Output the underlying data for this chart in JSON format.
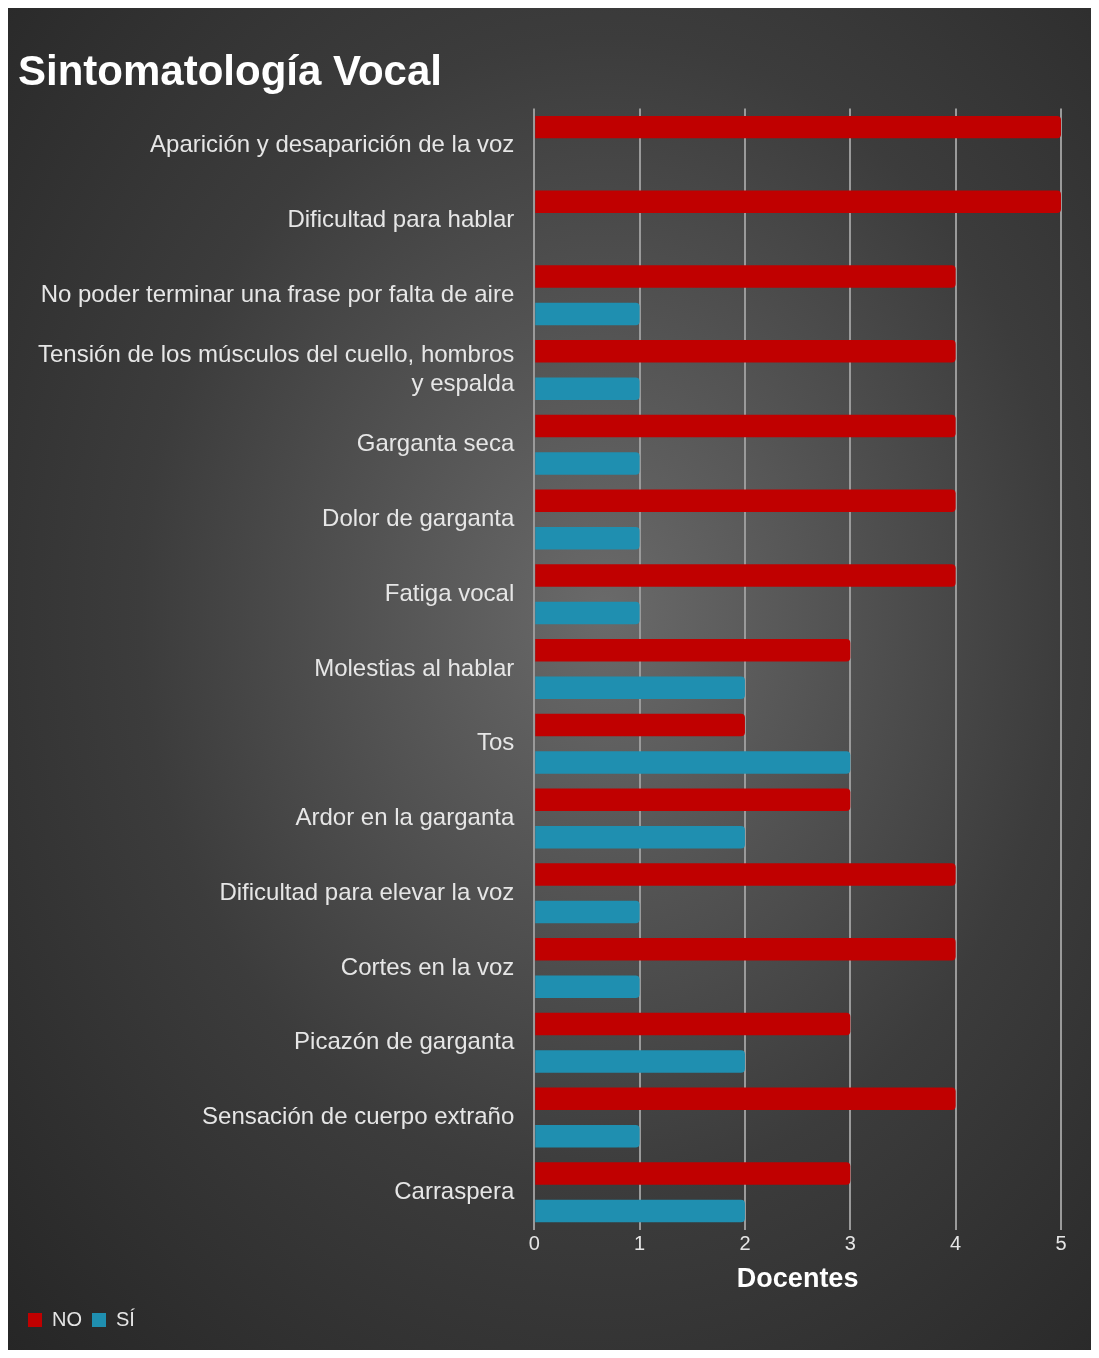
{
  "chart_data": {
    "type": "bar",
    "orientation": "horizontal",
    "title": "Sintomatología Vocal",
    "xlabel": "Docentes",
    "categories": [
      "Aparición y desaparición de la voz",
      "Dificultad para hablar",
      "No poder terminar una frase por falta de aire",
      "Tensión de los músculos del cuello, hombros y espalda",
      "Garganta seca",
      "Dolor de garganta",
      "Fatiga vocal",
      "Molestias al hablar",
      "Tos",
      "Ardor en la garganta",
      "Dificultad para elevar la voz",
      "Cortes en la voz",
      "Picazón de garganta",
      "Sensación de cuerpo extraño",
      "Carraspera"
    ],
    "series": [
      {
        "name": "NO",
        "color": "#c00000",
        "values": [
          5,
          5,
          4,
          4,
          4,
          4,
          4,
          3,
          2,
          3,
          4,
          4,
          3,
          4,
          3
        ]
      },
      {
        "name": "SÍ",
        "color": "#1f8fb0",
        "values": [
          0,
          0,
          1,
          1,
          1,
          1,
          1,
          2,
          3,
          2,
          1,
          1,
          2,
          1,
          2
        ]
      }
    ],
    "xlim": [
      0,
      5
    ],
    "xticks": [
      0,
      1,
      2,
      3,
      4,
      5
    ],
    "grid": "x",
    "legend": "bottom left"
  }
}
